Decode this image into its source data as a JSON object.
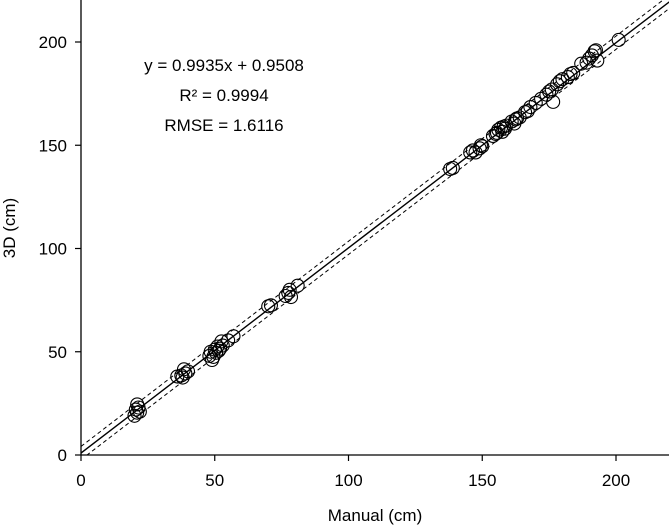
{
  "chart_data": {
    "type": "scatter",
    "xlabel": "Manual (cm)",
    "ylabel": "3D (cm)",
    "xlim": [
      0,
      220
    ],
    "ylim": [
      0,
      220
    ],
    "xticks": [
      0,
      50,
      100,
      150,
      200
    ],
    "yticks": [
      0,
      50,
      100,
      150,
      200
    ],
    "annotations": [
      "y = 0.9935x + 0.9508",
      "R² = 0.9994",
      "RMSE = 1.6116"
    ],
    "regression": {
      "slope": 0.9935,
      "intercept": 0.9508,
      "band": 3.2
    },
    "points": [
      [
        20,
        19
      ],
      [
        20.5,
        22
      ],
      [
        21,
        20.5
      ],
      [
        21.5,
        23
      ],
      [
        21,
        24.5
      ],
      [
        22,
        21
      ],
      [
        36,
        38
      ],
      [
        37.5,
        38.5
      ],
      [
        38.5,
        41.5
      ],
      [
        39,
        39.5
      ],
      [
        40,
        40.5
      ],
      [
        38,
        37.5
      ],
      [
        48,
        48
      ],
      [
        48.5,
        50
      ],
      [
        49,
        46
      ],
      [
        49.5,
        47.5
      ],
      [
        50,
        51
      ],
      [
        50.5,
        49.5
      ],
      [
        51,
        52.5
      ],
      [
        51.5,
        50.5
      ],
      [
        52,
        51.5
      ],
      [
        52.5,
        55
      ],
      [
        53,
        53
      ],
      [
        55,
        55.5
      ],
      [
        57,
        57.5
      ],
      [
        70,
        72
      ],
      [
        71,
        72.5
      ],
      [
        76.5,
        77
      ],
      [
        77.5,
        78.5
      ],
      [
        78,
        80
      ],
      [
        78.5,
        76.5
      ],
      [
        81,
        82
      ],
      [
        138,
        138.5
      ],
      [
        139,
        139
      ],
      [
        145.5,
        146.5
      ],
      [
        146.5,
        147.5
      ],
      [
        147.5,
        146.5
      ],
      [
        149,
        148.5
      ],
      [
        149.5,
        150
      ],
      [
        150,
        149.5
      ],
      [
        154,
        154.5
      ],
      [
        155,
        155.5
      ],
      [
        155.5,
        156
      ],
      [
        156,
        157.5
      ],
      [
        157,
        158.5
      ],
      [
        157.5,
        156.5
      ],
      [
        158,
        159
      ],
      [
        158.5,
        158
      ],
      [
        159,
        159.5
      ],
      [
        161,
        161.5
      ],
      [
        162,
        160.5
      ],
      [
        162.5,
        162.5
      ],
      [
        163,
        163
      ],
      [
        164,
        163.5
      ],
      [
        166,
        166
      ],
      [
        167,
        166.5
      ],
      [
        168,
        168.5
      ],
      [
        170,
        170.5
      ],
      [
        172,
        172.5
      ],
      [
        174,
        174.5
      ],
      [
        175,
        176
      ],
      [
        176,
        177
      ],
      [
        176.5,
        171
      ],
      [
        178,
        179.5
      ],
      [
        179,
        181
      ],
      [
        180,
        182
      ],
      [
        182,
        183
      ],
      [
        183,
        184.5
      ],
      [
        184,
        185
      ],
      [
        187,
        189.5
      ],
      [
        189,
        190
      ],
      [
        190,
        192
      ],
      [
        191,
        193.5
      ],
      [
        192,
        195.5
      ],
      [
        192.5,
        196
      ],
      [
        193,
        191
      ],
      [
        201,
        201
      ]
    ]
  }
}
